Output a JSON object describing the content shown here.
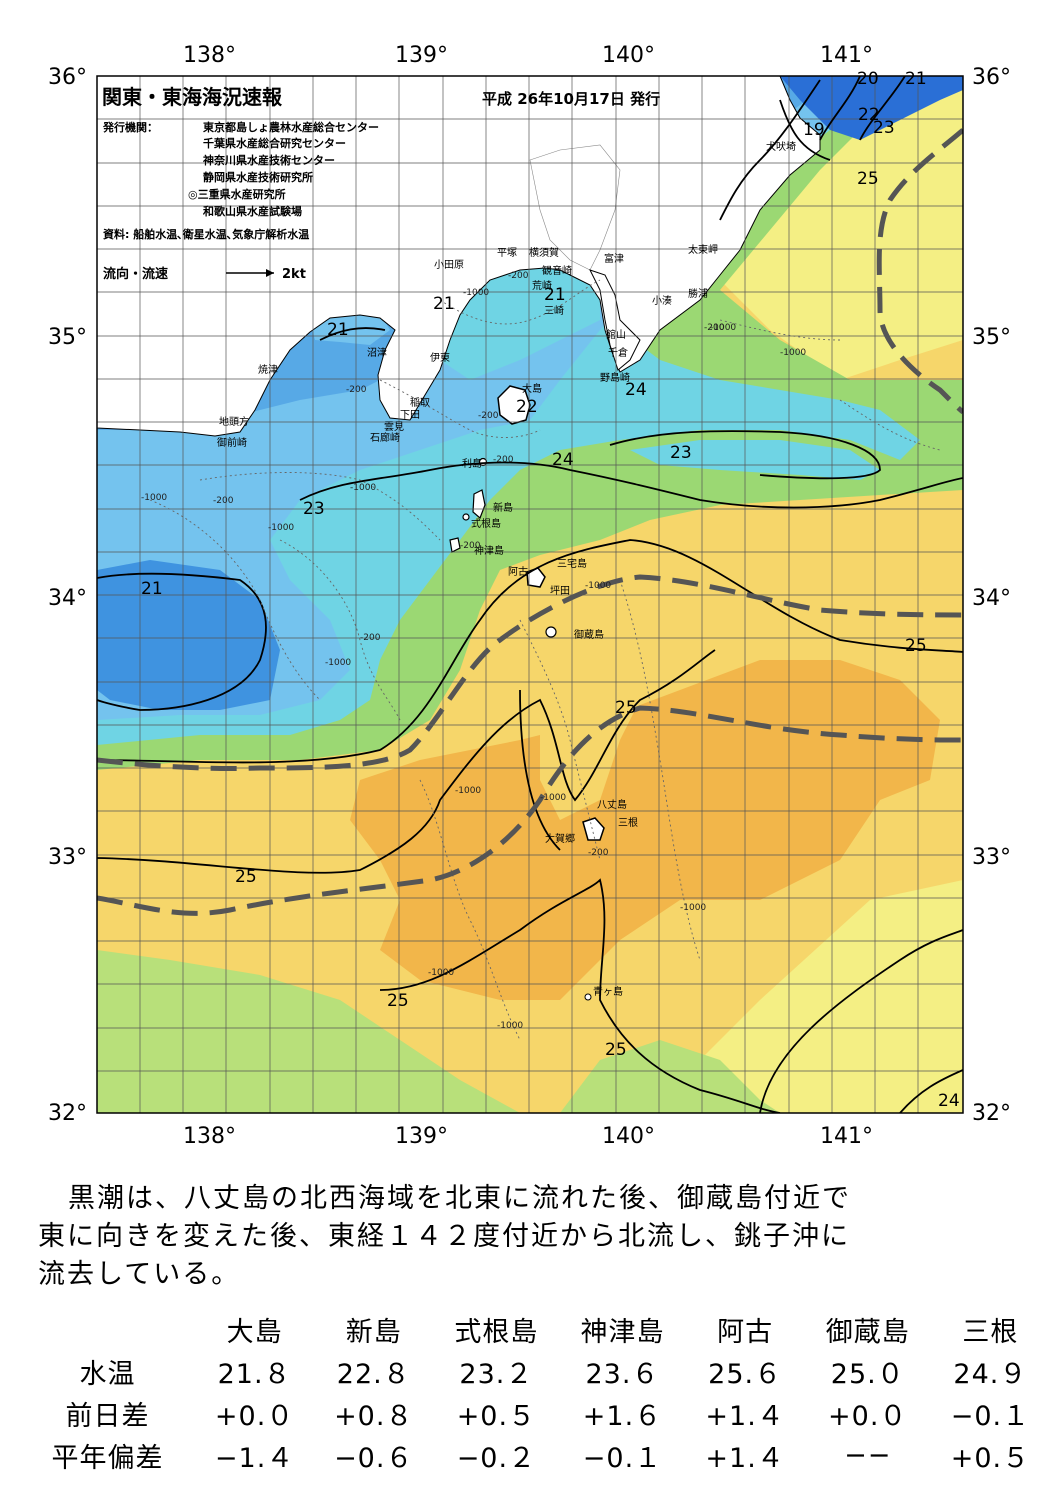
{
  "header": {
    "title": "関東・東海海況速報",
    "issue_date": "平成 26年10月17日 発行",
    "agency_label": "発行機関：",
    "agencies": [
      "東京都島しょ農林水産総合センター",
      "千葉県水産総合研究センター",
      "神奈川県水産技術センター",
      "静岡県水産技術研究所",
      "◎三重県水産研究所",
      "和歌山県水産試験場"
    ],
    "source": "資料: 船舶水温､衛星水温､気象庁解析水温",
    "legend_label": "流向・流速",
    "legend_scale": "2kt"
  },
  "axes": {
    "lon_labels": [
      "138°",
      "139°",
      "140°",
      "141°"
    ],
    "lat_labels": [
      "36°",
      "35°",
      "34°",
      "33°",
      "32°"
    ]
  },
  "places": [
    {
      "id": "inubosaki",
      "name": "犬吠埼"
    },
    {
      "id": "taitomisaki",
      "name": "太東岬"
    },
    {
      "id": "katsuura",
      "name": "勝浦"
    },
    {
      "id": "kominato",
      "name": "小湊"
    },
    {
      "id": "tomitsu",
      "name": "富津"
    },
    {
      "id": "tateyama",
      "name": "館山"
    },
    {
      "id": "chikura",
      "name": "千倉"
    },
    {
      "id": "nojimazaki",
      "name": "野島崎"
    },
    {
      "id": "yokosuka",
      "name": "横須賀"
    },
    {
      "id": "kannonzaki",
      "name": "観音崎"
    },
    {
      "id": "arasaki",
      "name": "荒崎"
    },
    {
      "id": "misaki",
      "name": "三崎"
    },
    {
      "id": "hiratsuka",
      "name": "平塚"
    },
    {
      "id": "odawara",
      "name": "小田原"
    },
    {
      "id": "ito",
      "name": "伊東"
    },
    {
      "id": "numazu",
      "name": "沼津"
    },
    {
      "id": "yaizu",
      "name": "焼津"
    },
    {
      "id": "inatori",
      "name": "稲取"
    },
    {
      "id": "shimoda",
      "name": "下田"
    },
    {
      "id": "kumomi",
      "name": "雲見"
    },
    {
      "id": "irozaki",
      "name": "石廊崎"
    },
    {
      "id": "jitogata",
      "name": "地頭方"
    },
    {
      "id": "omaezaki",
      "name": "御前崎"
    },
    {
      "id": "oshima",
      "name": "大島"
    },
    {
      "id": "toshima",
      "name": "利島"
    },
    {
      "id": "niijima",
      "name": "新島"
    },
    {
      "id": "shikinejima",
      "name": "式根島"
    },
    {
      "id": "kozushima",
      "name": "神津島"
    },
    {
      "id": "miyakejima",
      "name": "三宅島"
    },
    {
      "id": "ako",
      "name": "阿古"
    },
    {
      "id": "tsubota",
      "name": "坪田"
    },
    {
      "id": "mikurajima",
      "name": "御蔵島"
    },
    {
      "id": "hachijojima",
      "name": "八丈島"
    },
    {
      "id": "mitsune",
      "name": "三根"
    },
    {
      "id": "okago",
      "name": "大賀郷"
    },
    {
      "id": "aogashima",
      "name": "青ヶ島"
    }
  ],
  "isotherm_labels": [
    {
      "id": "i20",
      "text": "20"
    },
    {
      "id": "i21a",
      "text": "21"
    },
    {
      "id": "i19",
      "text": "19"
    },
    {
      "id": "i22",
      "text": "22"
    },
    {
      "id": "i23a",
      "text": "23"
    },
    {
      "id": "i25a",
      "text": "25"
    },
    {
      "id": "i21b",
      "text": "21"
    },
    {
      "id": "i21c",
      "text": "21"
    },
    {
      "id": "i21d",
      "text": "21"
    },
    {
      "id": "i22b",
      "text": "22"
    },
    {
      "id": "i24a",
      "text": "24"
    },
    {
      "id": "i23b",
      "text": "23"
    },
    {
      "id": "i24b",
      "text": "24"
    },
    {
      "id": "i23c",
      "text": "23"
    },
    {
      "id": "i21e",
      "text": "21"
    },
    {
      "id": "i25b",
      "text": "25"
    },
    {
      "id": "i25c",
      "text": "25"
    },
    {
      "id": "i25d",
      "text": "25"
    },
    {
      "id": "i25e",
      "text": "25"
    },
    {
      "id": "i25f",
      "text": "25"
    },
    {
      "id": "i24c",
      "text": "24"
    }
  ],
  "depth_labels": [
    {
      "id": "d1",
      "text": "-200"
    },
    {
      "id": "d2",
      "text": "-1000"
    },
    {
      "id": "d3",
      "text": "-200"
    },
    {
      "id": "d4",
      "text": "-1000"
    },
    {
      "id": "d5",
      "text": "-200"
    },
    {
      "id": "d6",
      "text": "-200"
    },
    {
      "id": "d7",
      "text": "-200"
    },
    {
      "id": "d8",
      "text": "-1000"
    },
    {
      "id": "d9",
      "text": "-200"
    },
    {
      "id": "d10",
      "text": "-1000"
    },
    {
      "id": "d11",
      "text": "-1000"
    },
    {
      "id": "d12",
      "text": "-200"
    },
    {
      "id": "d13",
      "text": "-1000"
    },
    {
      "id": "d14",
      "text": "-200"
    },
    {
      "id": "d15",
      "text": "-1000"
    },
    {
      "id": "d16",
      "text": "-1000"
    },
    {
      "id": "d17",
      "text": "-1000"
    },
    {
      "id": "d18",
      "text": "-1000"
    },
    {
      "id": "d19",
      "text": "-200"
    },
    {
      "id": "d20",
      "text": "-1000"
    },
    {
      "id": "d21",
      "text": "-1000"
    },
    {
      "id": "d22",
      "text": "-1000"
    }
  ],
  "summary": {
    "line1": "黒潮は、八丈島の北西海域を北東に流れた後、御蔵島付近で",
    "line2": "東に向きを変えた後、東経１４２度付近から北流し、銚子沖に",
    "line3": "流去している。"
  },
  "table": {
    "columns": [
      "大島",
      "新島",
      "式根島",
      "神津島",
      "阿古",
      "御蔵島",
      "三根"
    ],
    "rows": [
      {
        "label": "水温",
        "values": [
          "21.８",
          "22.８",
          "23.２",
          "23.６",
          "25.６",
          "25.０",
          "24.９"
        ]
      },
      {
        "label": "前日差",
        "values": [
          "+0.０",
          "+0.８",
          "+0.５",
          "+1.６",
          "+1.４",
          "+0.０",
          "−0.１"
        ]
      },
      {
        "label": "平年偏差",
        "values": [
          "−1.４",
          "−0.６",
          "−0.２",
          "−0.１",
          "+1.４",
          "−−",
          "+0.５"
        ]
      }
    ]
  },
  "colors": {
    "warm_orange": "#f2b64a",
    "warm_yellow": "#f6d66a",
    "pale_yellow": "#f4ef84",
    "green": "#9bd873",
    "light_green": "#b8e07a",
    "cyan": "#6fd4e4",
    "light_blue": "#74c3ee",
    "blue": "#3f93e0",
    "deep_blue": "#2a6fd6",
    "land": "#ffffff",
    "kuroshio_axis": "#555555"
  }
}
